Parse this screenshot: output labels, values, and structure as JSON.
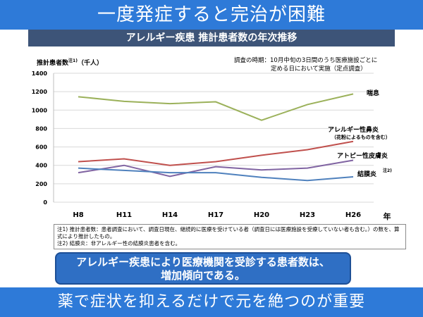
{
  "slide": {
    "headline": "一度発症すると完治が困難",
    "chart_heading": "アレルギー疾患 推計患者数の年次推移",
    "y_label": "推計患者数",
    "y_label_sup": "注1)",
    "y_label_unit": "（千人）",
    "x_unit": "年",
    "survey_note_line1": "調査の時期：10月中旬の3日間のうち医療施設ごとに",
    "survey_note_line2": "定める日において実施（定点調査）",
    "footnote_1": "注1) 推計患者数：患者調査において、調査日現在、継続的に医療を受けている者（調査日には医療施設を受療していない者も含む。）の数を、算式により推計したもの。",
    "footnote_2": "注2) 結膜炎：非アレルギー性の結膜炎患者を含む。",
    "conclusion_line1": "アレルギー疾患により医療機関を受診する患者数は、",
    "conclusion_line2": "増加傾向である。",
    "footer_message": "薬で症状を抑えるだけで元を絶つのが重要"
  },
  "chart_data": {
    "type": "line",
    "categories": [
      "H8",
      "H11",
      "H14",
      "H17",
      "H20",
      "H23",
      "H26"
    ],
    "ylim": [
      0,
      1400
    ],
    "yticks": [
      0,
      200,
      400,
      600,
      800,
      1000,
      1200,
      1400
    ],
    "grid": true,
    "series": [
      {
        "name": "喘息",
        "color": "#9bb15a",
        "values": [
          1145,
          1095,
          1070,
          1090,
          890,
          1060,
          1175
        ]
      },
      {
        "name": "アレルギー性鼻炎",
        "sub": "（花粉によるものを含む）",
        "color": "#c0504d",
        "values": [
          440,
          470,
          400,
          440,
          510,
          570,
          660
        ]
      },
      {
        "name": "アトピー性皮膚炎",
        "color": "#8064a2",
        "values": [
          320,
          400,
          280,
          385,
          350,
          370,
          455
        ]
      },
      {
        "name": "結膜炎",
        "sup": "注2)",
        "color": "#4f81bd",
        "values": [
          370,
          345,
          320,
          320,
          270,
          235,
          275
        ]
      }
    ]
  }
}
